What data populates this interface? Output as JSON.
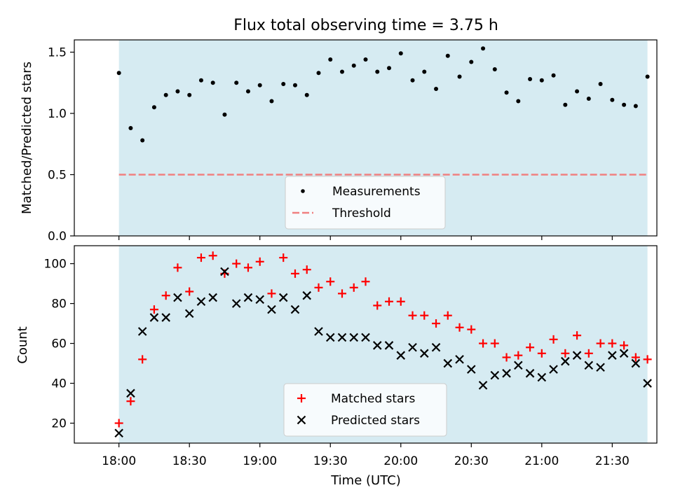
{
  "figure": {
    "title": "Flux total observing time = 3.75 h",
    "xlabel": "Time (UTC)"
  },
  "colors": {
    "background": "#ffffff",
    "span": "#add8e6",
    "threshold": "#f08080",
    "measurements": "#000000",
    "matched": "#ff0000",
    "predicted": "#000000",
    "legend_bg": "#ffffff"
  },
  "chart_data": [
    {
      "type": "scatter",
      "ylabel": "Matched/Predicted stars",
      "xlim_minutes": [
        -19,
        229
      ],
      "ylim": [
        0,
        1.6
      ],
      "grid": false,
      "yticks": [
        0,
        0.5,
        1.0,
        1.5
      ],
      "ytick_labels": [
        "0.0",
        "0.5",
        "1.0",
        "1.5"
      ],
      "shaded_span": [
        "18:00",
        "21:45"
      ],
      "threshold": {
        "value": 0.5,
        "name": "Threshold",
        "style": "dashed"
      },
      "legend": {
        "placement": "lower center",
        "entries": [
          "Measurements",
          "Threshold"
        ]
      },
      "x": [
        "18:00",
        "18:05",
        "18:10",
        "18:15",
        "18:20",
        "18:25",
        "18:30",
        "18:35",
        "18:40",
        "18:45",
        "18:50",
        "18:55",
        "19:00",
        "19:05",
        "19:10",
        "19:15",
        "19:20",
        "19:25",
        "19:30",
        "19:35",
        "19:40",
        "19:45",
        "19:50",
        "19:55",
        "20:00",
        "20:05",
        "20:10",
        "20:15",
        "20:20",
        "20:25",
        "20:30",
        "20:35",
        "20:40",
        "20:45",
        "20:50",
        "20:55",
        "21:00",
        "21:05",
        "21:10",
        "21:15",
        "21:20",
        "21:25",
        "21:30",
        "21:35",
        "21:40",
        "21:45"
      ],
      "series": [
        {
          "name": "Measurements",
          "marker": "dot",
          "values": [
            1.33,
            0.88,
            0.78,
            1.05,
            1.15,
            1.18,
            1.15,
            1.27,
            1.25,
            0.99,
            1.25,
            1.18,
            1.23,
            1.1,
            1.24,
            1.23,
            1.15,
            1.33,
            1.44,
            1.34,
            1.39,
            1.44,
            1.34,
            1.37,
            1.49,
            1.27,
            1.34,
            1.2,
            1.47,
            1.3,
            1.42,
            1.53,
            1.36,
            1.17,
            1.1,
            1.28,
            1.27,
            1.31,
            1.07,
            1.18,
            1.12,
            1.24,
            1.11,
            1.07,
            1.06,
            1.3
          ]
        }
      ]
    },
    {
      "type": "scatter",
      "ylabel": "Count",
      "xlim_minutes": [
        -19,
        229
      ],
      "ylim": [
        10,
        109
      ],
      "grid": false,
      "yticks": [
        20,
        40,
        60,
        80,
        100
      ],
      "ytick_labels": [
        "20",
        "40",
        "60",
        "80",
        "100"
      ],
      "xticks": [
        "18:00",
        "18:30",
        "19:00",
        "19:30",
        "20:00",
        "20:30",
        "21:00",
        "21:30"
      ],
      "shaded_span": [
        "18:00",
        "21:45"
      ],
      "legend": {
        "placement": "lower center",
        "entries": [
          "Matched stars",
          "Predicted stars"
        ]
      },
      "x": [
        "18:00",
        "18:05",
        "18:10",
        "18:15",
        "18:20",
        "18:25",
        "18:30",
        "18:35",
        "18:40",
        "18:45",
        "18:50",
        "18:55",
        "19:00",
        "19:05",
        "19:10",
        "19:15",
        "19:20",
        "19:25",
        "19:30",
        "19:35",
        "19:40",
        "19:45",
        "19:50",
        "19:55",
        "20:00",
        "20:05",
        "20:10",
        "20:15",
        "20:20",
        "20:25",
        "20:30",
        "20:35",
        "20:40",
        "20:45",
        "20:50",
        "20:55",
        "21:00",
        "21:05",
        "21:10",
        "21:15",
        "21:20",
        "21:25",
        "21:30",
        "21:35",
        "21:40",
        "21:45"
      ],
      "series": [
        {
          "name": "Matched stars",
          "marker": "plus",
          "values": [
            20,
            31,
            52,
            77,
            84,
            98,
            86,
            103,
            104,
            95,
            100,
            98,
            101,
            85,
            103,
            95,
            97,
            88,
            91,
            85,
            88,
            91,
            79,
            81,
            81,
            74,
            74,
            70,
            74,
            68,
            67,
            60,
            60,
            53,
            54,
            58,
            55,
            62,
            55,
            64,
            55,
            60,
            60,
            59,
            53,
            52
          ]
        },
        {
          "name": "Predicted stars",
          "marker": "x",
          "values": [
            15,
            35,
            66,
            73,
            73,
            83,
            75,
            81,
            83,
            96,
            80,
            83,
            82,
            77,
            83,
            77,
            84,
            66,
            63,
            63,
            63,
            63,
            59,
            59,
            54,
            58,
            55,
            58,
            50,
            52,
            47,
            39,
            44,
            45,
            49,
            45,
            43,
            47,
            51,
            54,
            49,
            48,
            54,
            55,
            50,
            40
          ]
        }
      ]
    }
  ]
}
